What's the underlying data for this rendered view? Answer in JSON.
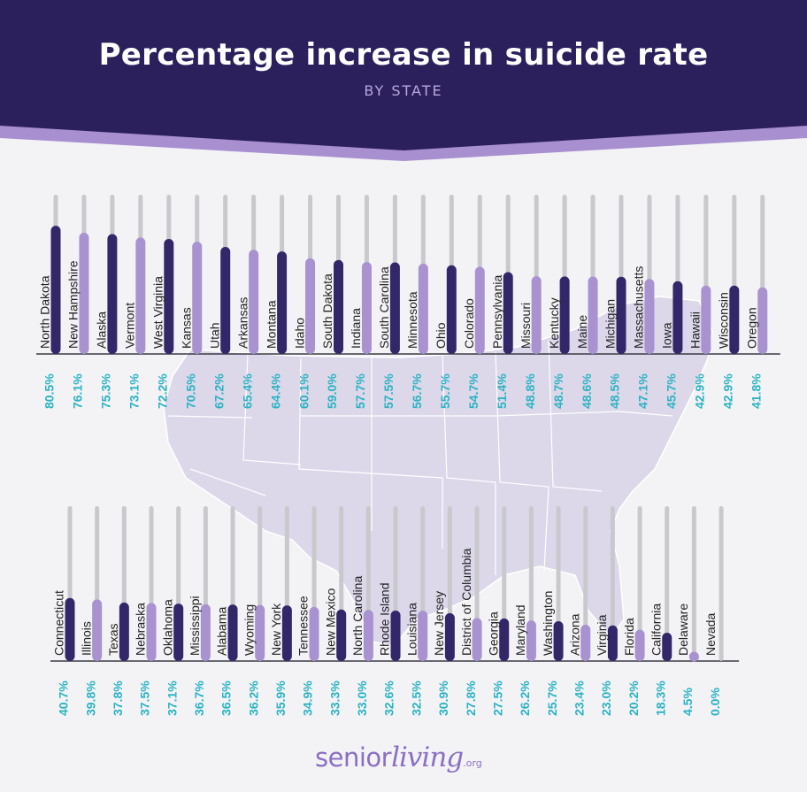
{
  "header": {
    "title": "Percentage increase in suicide rate",
    "subtitle": "BY STATE"
  },
  "logo": {
    "senior": "senior",
    "living": "living",
    "tld": ".org"
  },
  "colors": {
    "header_bg": "#2b1f5c",
    "accent_band": "#a88fd0",
    "bar_dark": "#33276a",
    "bar_light": "#a892cf",
    "track": "#c9c9cd",
    "value_label": "#2bb3c3",
    "map_fill": "#dcd8ea"
  },
  "chart_data": [
    {
      "type": "bar",
      "title": "",
      "ylim": [
        0,
        100
      ],
      "categories": [
        "North Dakota",
        "New Hampshire",
        "Alaska",
        "Vermont",
        "West Virginia",
        "Kansas",
        "Utah",
        "Arkansas",
        "Montana",
        "Idaho",
        "South Dakota",
        "Indiana",
        "South Carolina",
        "Minnesota",
        "Ohio",
        "Colorado",
        "Pennsylvania",
        "Missouri",
        "Kentucky",
        "Maine",
        "Michigan",
        "Massachusetts",
        "Iowa",
        "Hawaii",
        "Wisconsin",
        "Oregon"
      ],
      "values": [
        80.5,
        76.1,
        75.3,
        73.1,
        72.2,
        70.5,
        67.2,
        65.4,
        64.4,
        60.1,
        59.0,
        57.7,
        57.5,
        56.7,
        55.7,
        54.7,
        51.4,
        48.8,
        48.7,
        48.6,
        48.5,
        47.1,
        45.7,
        42.9,
        42.9,
        41.8
      ],
      "value_labels": [
        "80.5%",
        "76.1%",
        "75.3%",
        "73.1%",
        "72.2%",
        "70.5%",
        "67.2%",
        "65.4%",
        "64.4%",
        "60.1%",
        "59.0%",
        "57.7%",
        "57.5%",
        "56.7%",
        "55.7%",
        "54.7%",
        "51.4%",
        "48.8%",
        "48.7%",
        "48.6%",
        "48.5%",
        "47.1%",
        "45.7%",
        "42.9%",
        "42.9%",
        "41.8%"
      ]
    },
    {
      "type": "bar",
      "title": "",
      "ylim": [
        0,
        100
      ],
      "categories": [
        "Connecticut",
        "Illinois",
        "Texas",
        "Nebraska",
        "Oklahoma",
        "Mississippi",
        "Alabama",
        "Wyoming",
        "New York",
        "Tennessee",
        "New Mexico",
        "North Carolina",
        "Rhode Island",
        "Louisiana",
        "New Jersey",
        "District of Columbia",
        "Georgia",
        "Maryland",
        "Washington",
        "Arizona",
        "Virginia",
        "Florida",
        "California",
        "Delaware",
        "Nevada"
      ],
      "values": [
        40.7,
        39.8,
        37.8,
        37.5,
        37.1,
        36.7,
        36.5,
        36.2,
        35.9,
        34.9,
        33.3,
        33.0,
        32.6,
        32.5,
        30.9,
        27.8,
        27.5,
        26.2,
        25.7,
        23.4,
        23.0,
        20.2,
        18.3,
        4.5,
        0.0
      ],
      "value_labels": [
        "40.7%",
        "39.8%",
        "37.8%",
        "37.5%",
        "37.1%",
        "36.7%",
        "36.5%",
        "36.2%",
        "35.9%",
        "34.9%",
        "33.3%",
        "33.0%",
        "32.6%",
        "32.5%",
        "30.9%",
        "27.8%",
        "27.5%",
        "26.2%",
        "25.7%",
        "23.4%",
        "23.0%",
        "20.2%",
        "18.3%",
        "4.5%",
        "0.0%"
      ]
    }
  ]
}
